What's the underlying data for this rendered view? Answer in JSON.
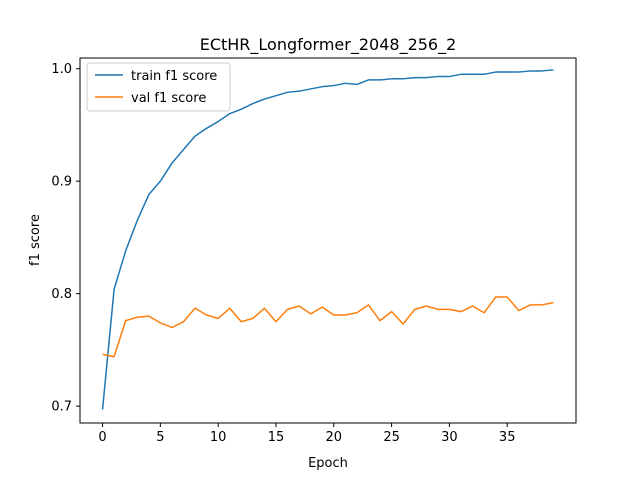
{
  "chart_data": {
    "type": "line",
    "title": "ECtHR_Longformer_2048_256_2",
    "xlabel": "Epoch",
    "ylabel": "f1 score",
    "xlim": [
      -1.95,
      40.95
    ],
    "ylim": [
      0.685,
      1.0095
    ],
    "x_ticks": [
      0,
      5,
      10,
      15,
      20,
      25,
      30,
      35
    ],
    "y_ticks": [
      0.7,
      0.8,
      0.9,
      1.0
    ],
    "x_tick_labels": [
      "0",
      "5",
      "10",
      "15",
      "20",
      "25",
      "30",
      "35"
    ],
    "y_tick_labels": [
      "0.7",
      "0.8",
      "0.9",
      "1.0"
    ],
    "grid": false,
    "legend_position": "upper-left",
    "x": [
      0,
      1,
      2,
      3,
      4,
      5,
      6,
      7,
      8,
      9,
      10,
      11,
      12,
      13,
      14,
      15,
      16,
      17,
      18,
      19,
      20,
      21,
      22,
      23,
      24,
      25,
      26,
      27,
      28,
      29,
      30,
      31,
      32,
      33,
      34,
      35,
      36,
      37,
      38,
      39
    ],
    "series": [
      {
        "name": "train f1 score",
        "color": "#1f77b4",
        "values": [
          0.697,
          0.804,
          0.838,
          0.865,
          0.888,
          0.9,
          0.916,
          0.928,
          0.94,
          0.947,
          0.953,
          0.96,
          0.964,
          0.969,
          0.973,
          0.976,
          0.979,
          0.98,
          0.982,
          0.984,
          0.985,
          0.987,
          0.986,
          0.99,
          0.99,
          0.991,
          0.991,
          0.992,
          0.992,
          0.993,
          0.993,
          0.995,
          0.995,
          0.995,
          0.997,
          0.997,
          0.997,
          0.998,
          0.998,
          0.999
        ]
      },
      {
        "name": "val f1 score",
        "color": "#ff7f0e",
        "values": [
          0.746,
          0.744,
          0.776,
          0.779,
          0.78,
          0.774,
          0.77,
          0.775,
          0.787,
          0.781,
          0.778,
          0.787,
          0.775,
          0.778,
          0.787,
          0.775,
          0.786,
          0.789,
          0.782,
          0.788,
          0.781,
          0.781,
          0.783,
          0.79,
          0.776,
          0.784,
          0.773,
          0.786,
          0.789,
          0.786,
          0.786,
          0.784,
          0.789,
          0.783,
          0.797,
          0.797,
          0.785,
          0.79,
          0.79,
          0.792
        ]
      }
    ]
  }
}
